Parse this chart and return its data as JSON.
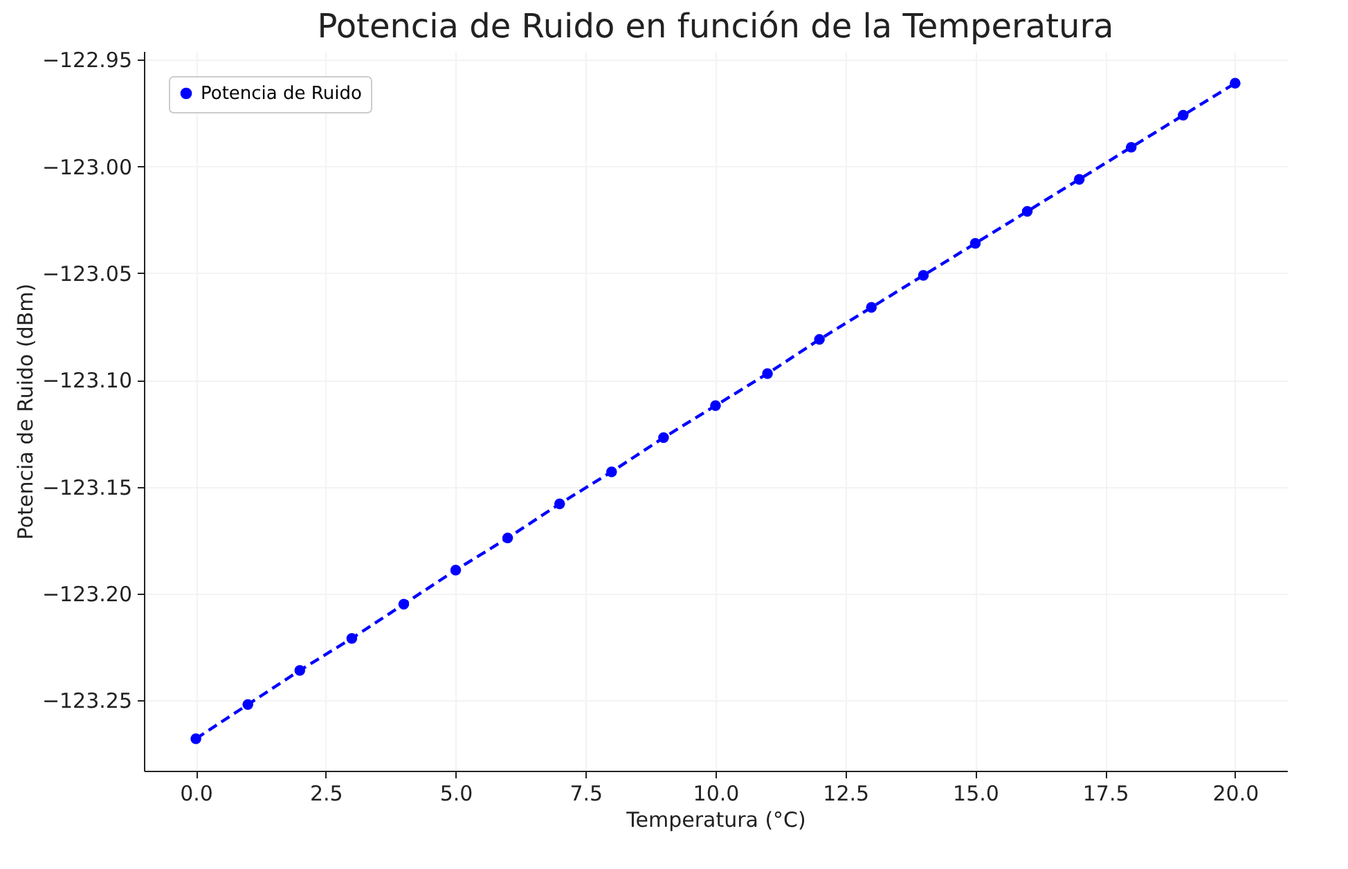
{
  "chart_data": {
    "type": "line",
    "title": "Potencia de Ruido en función de la Temperatura",
    "xlabel": "Temperatura (°C)",
    "ylabel": "Potencia de Ruido (dBm)",
    "x": [
      0,
      1,
      2,
      3,
      4,
      5,
      6,
      7,
      8,
      9,
      10,
      11,
      12,
      13,
      14,
      15,
      16,
      17,
      18,
      19,
      20
    ],
    "series": [
      {
        "name": "Potencia de Ruido",
        "color": "#0000ff",
        "values": [
          -123.268,
          -123.252,
          -123.236,
          -123.221,
          -123.205,
          -123.189,
          -123.174,
          -123.158,
          -123.143,
          -123.127,
          -123.112,
          -123.097,
          -123.081,
          -123.066,
          -123.051,
          -123.036,
          -123.021,
          -123.006,
          -122.991,
          -122.976,
          -122.961
        ]
      }
    ],
    "xlim": [
      -1,
      21
    ],
    "ylim": [
      -123.283,
      -122.946
    ],
    "xticks": [
      {
        "value": 0,
        "label": "0.0"
      },
      {
        "value": 2.5,
        "label": "2.5"
      },
      {
        "value": 5,
        "label": "5.0"
      },
      {
        "value": 7.5,
        "label": "7.5"
      },
      {
        "value": 10,
        "label": "10.0"
      },
      {
        "value": 12.5,
        "label": "12.5"
      },
      {
        "value": 15,
        "label": "15.0"
      },
      {
        "value": 17.5,
        "label": "17.5"
      },
      {
        "value": 20,
        "label": "20.0"
      }
    ],
    "yticks": [
      {
        "value": -123.25,
        "label": "−123.25"
      },
      {
        "value": -123.2,
        "label": "−123.20"
      },
      {
        "value": -123.15,
        "label": "−123.15"
      },
      {
        "value": -123.1,
        "label": "−123.10"
      },
      {
        "value": -123.05,
        "label": "−123.05"
      },
      {
        "value": -123,
        "label": "−123.00"
      },
      {
        "value": -122.95,
        "label": "−122.95"
      }
    ],
    "grid": true,
    "legend": "top left",
    "marker": "circle",
    "line_style": "dashed"
  }
}
